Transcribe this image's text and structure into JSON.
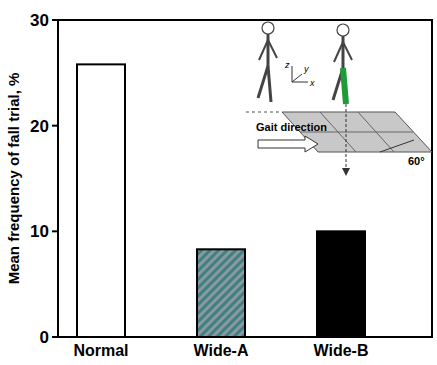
{
  "chart_data": {
    "type": "bar",
    "y_label": "Mean frequency of fall trial, %",
    "categories": [
      "Normal",
      "Wide-A",
      "Wide-B"
    ],
    "values": [
      25.8,
      8.3,
      10
    ],
    "colors": [
      "#ffffff",
      "#3f7f86",
      "#000000"
    ],
    "ylim": [
      0,
      30
    ],
    "yticks": [
      0,
      10,
      20,
      30
    ],
    "grid": false,
    "annotations": [
      "Gait direction",
      "60°",
      "x",
      "y",
      "z"
    ]
  }
}
